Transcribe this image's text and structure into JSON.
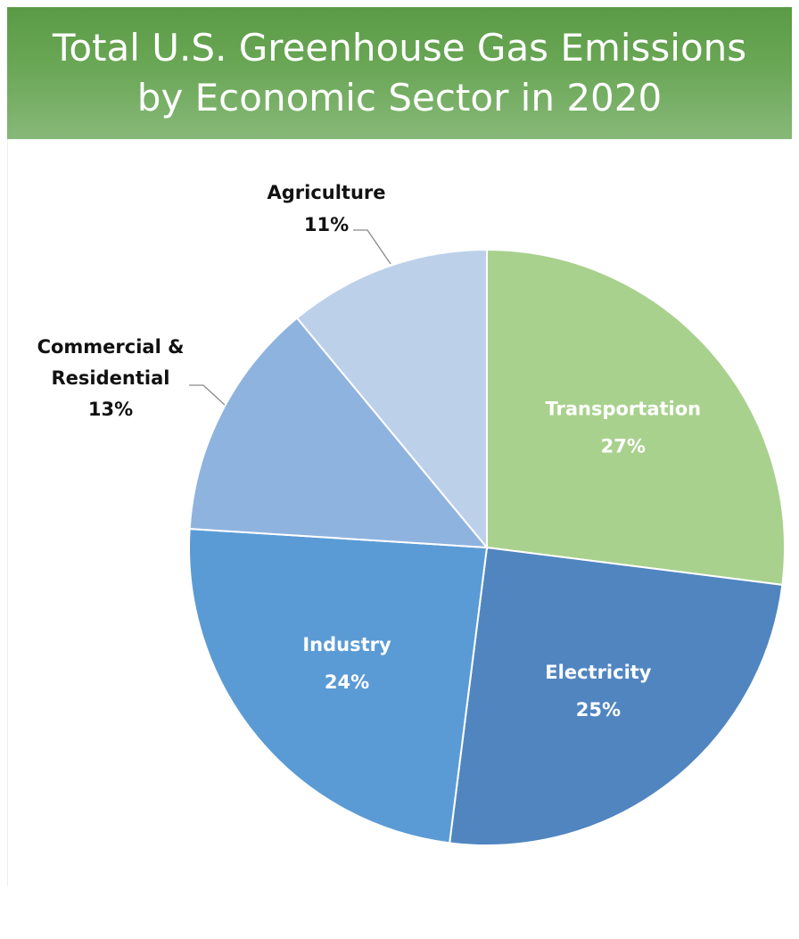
{
  "title": {
    "line1": "Total U.S. Greenhouse Gas Emissions",
    "line2": "by Economic Sector in 2020"
  },
  "colors": {
    "title_bar": "#6aa756",
    "Transportation": "#a9d18e",
    "Electricity": "#5085c0",
    "Industry": "#5b9bd5",
    "Commercial & Residential": "#8fb3df",
    "Agriculture": "#bdd0ea"
  },
  "chart_data": {
    "type": "pie",
    "title": "Total U.S. Greenhouse Gas Emissions by Economic Sector in 2020",
    "start": "12 o'clock, clockwise",
    "categories": [
      "Transportation",
      "Electricity",
      "Industry",
      "Commercial & Residential",
      "Agriculture"
    ],
    "values": [
      27,
      25,
      24,
      13,
      11
    ],
    "unit": "%",
    "labels": [
      {
        "name_lines": [
          "Transportation"
        ],
        "value_text": "27%",
        "placement": "inside"
      },
      {
        "name_lines": [
          "Electricity"
        ],
        "value_text": "25%",
        "placement": "inside"
      },
      {
        "name_lines": [
          "Industry"
        ],
        "value_text": "24%",
        "placement": "inside"
      },
      {
        "name_lines": [
          "Commercial &",
          "Residential"
        ],
        "value_text": "13%",
        "placement": "outside"
      },
      {
        "name_lines": [
          "Agriculture"
        ],
        "value_text": "11%",
        "placement": "outside"
      }
    ],
    "legend": "none",
    "grid": false
  }
}
